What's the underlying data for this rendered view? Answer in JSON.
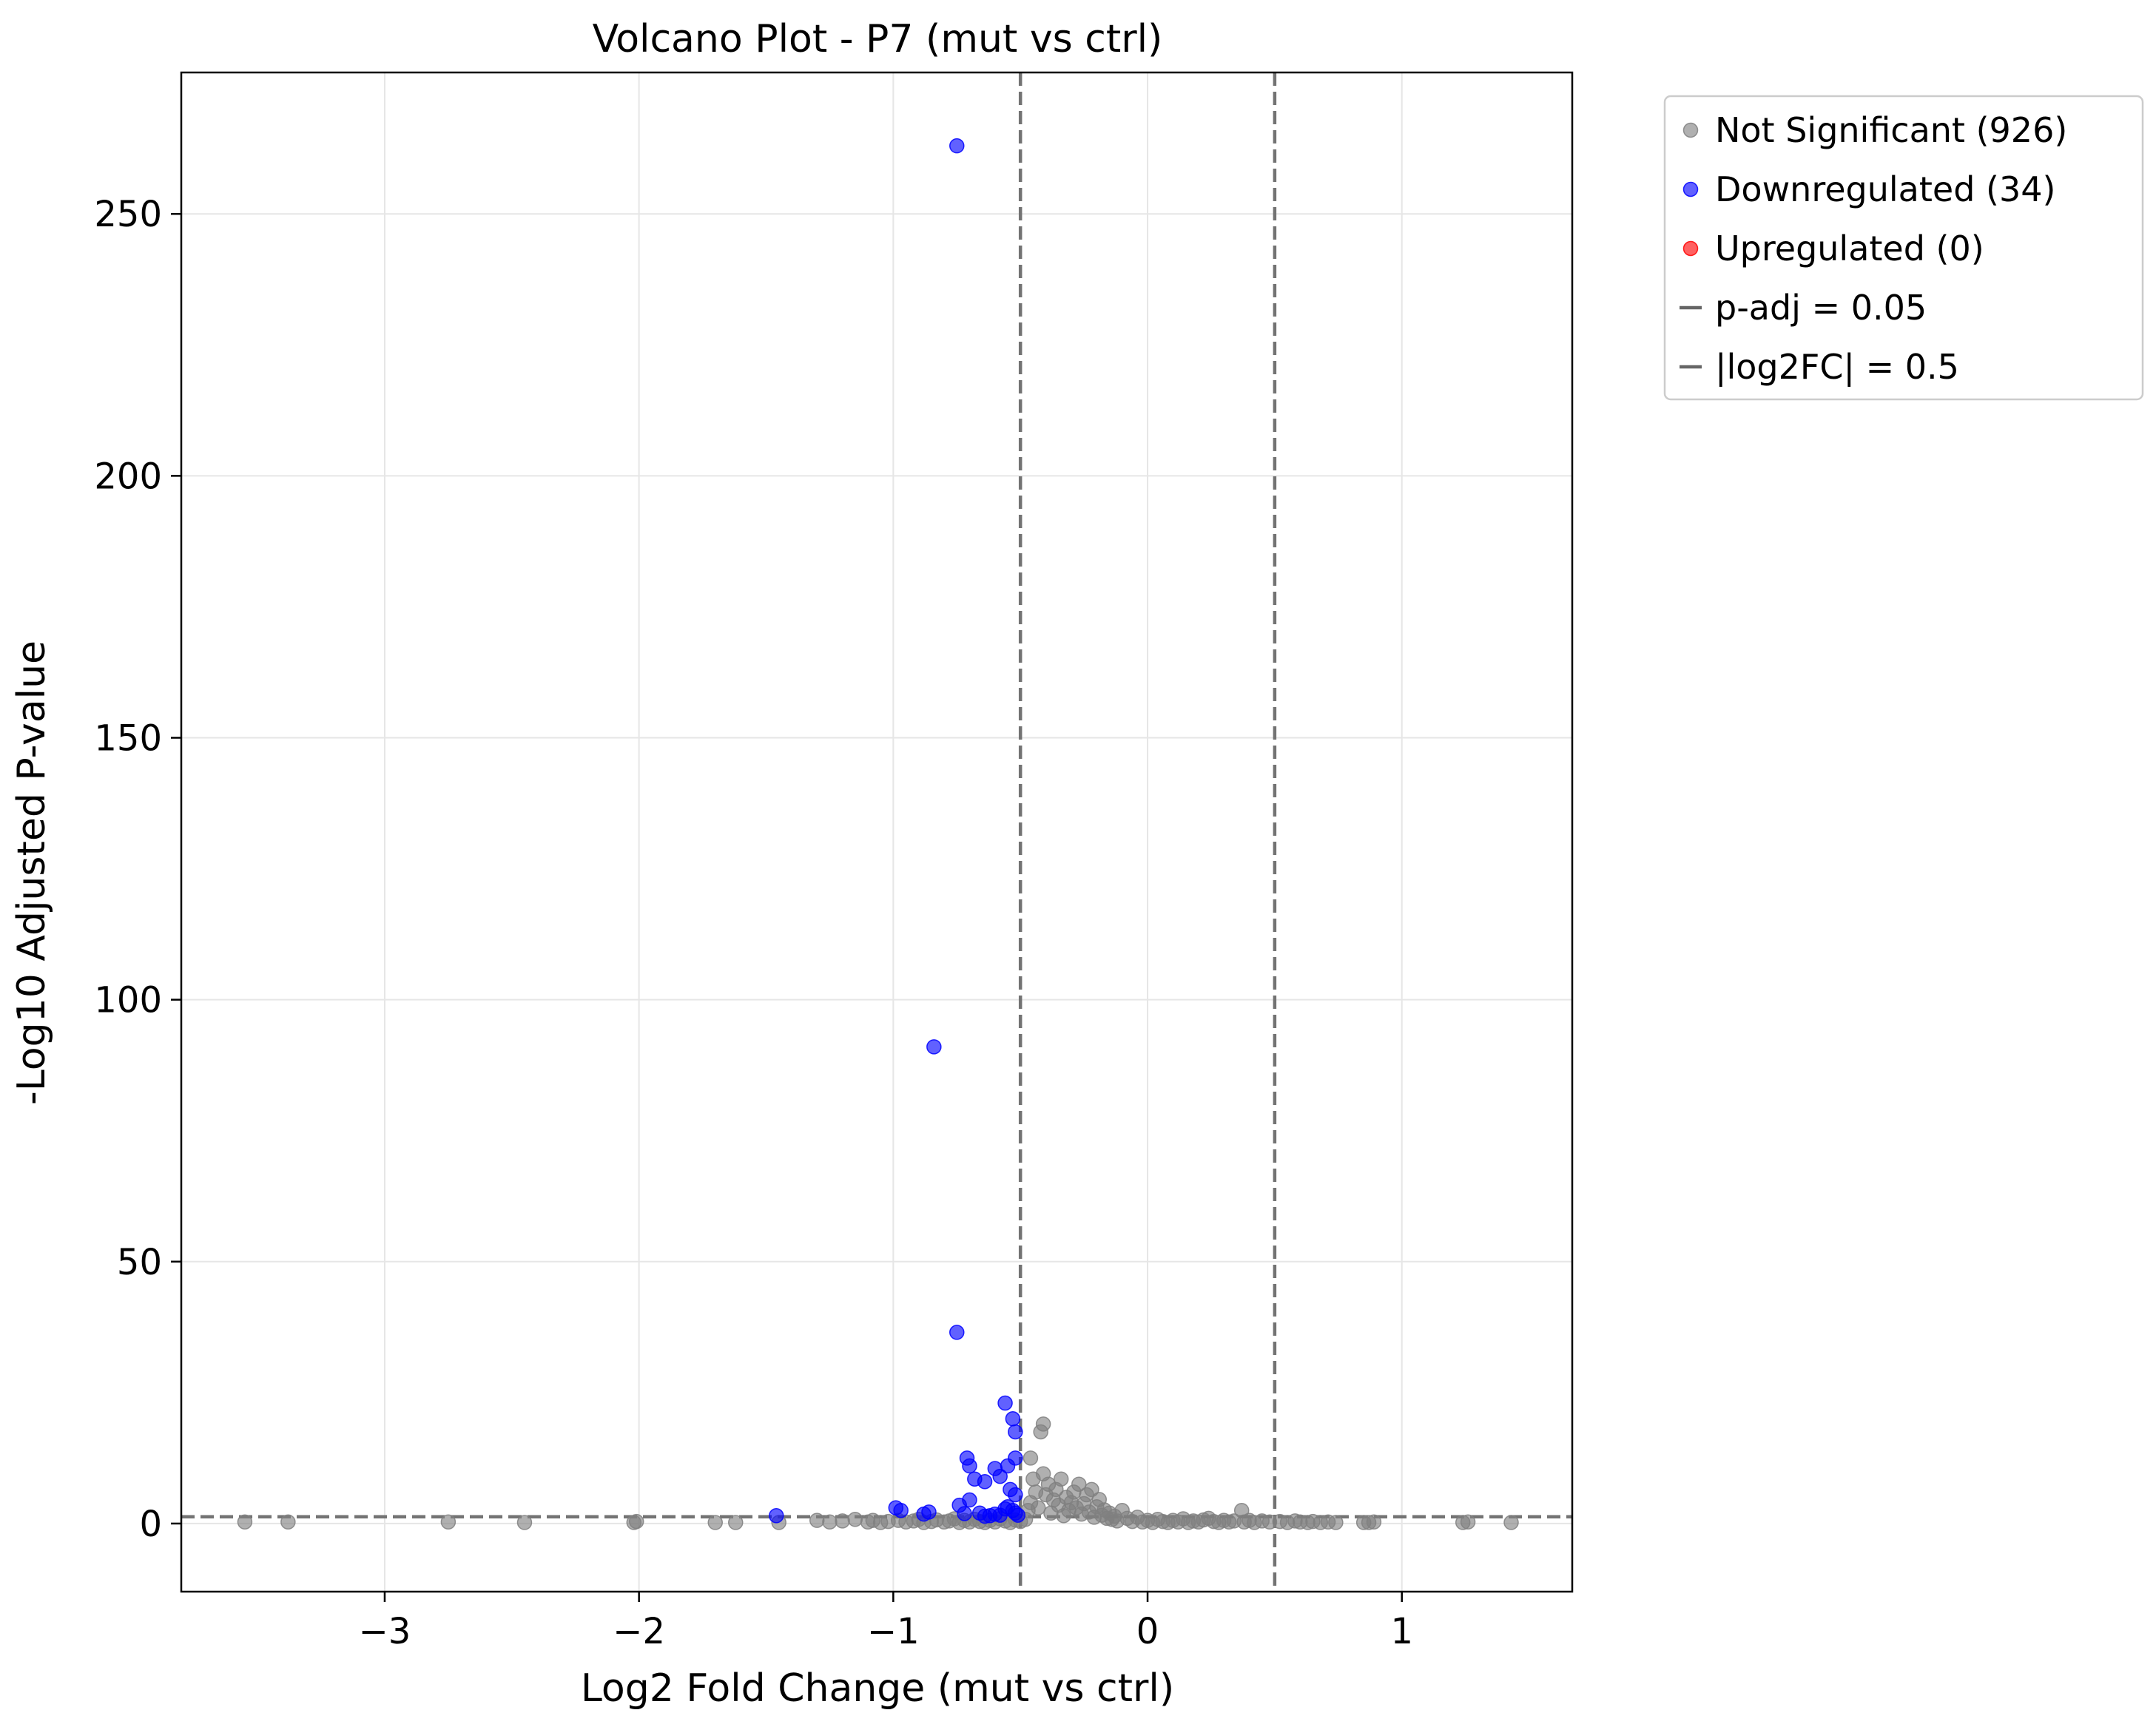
{
  "chart_data": {
    "type": "scatter",
    "title": "Volcano Plot - P7 (mut vs ctrl)",
    "xlabel": "Log2 Fold Change (mut vs ctrl)",
    "ylabel": "-Log10 Adjusted P-value",
    "xlim": [
      -3.8,
      1.67
    ],
    "ylim": [
      -13,
      277
    ],
    "x_ticks": [
      -3,
      -2,
      -1,
      0,
      1
    ],
    "x_tick_labels": [
      "−3",
      "−2",
      "−1",
      "0",
      "1"
    ],
    "y_ticks": [
      0,
      50,
      100,
      150,
      200,
      250
    ],
    "y_tick_labels": [
      "0",
      "50",
      "100",
      "150",
      "200",
      "250"
    ],
    "grid": true,
    "legend_position": "outside-top-right",
    "thresholds": {
      "padj_line_y": 1.3,
      "fc_lines_x": [
        -0.5,
        0.5
      ]
    },
    "legend": [
      {
        "label": "Not Significant (926)",
        "kind": "marker",
        "color": "#808080"
      },
      {
        "label": "Downregulated (34)",
        "kind": "marker",
        "color": "#0000ff"
      },
      {
        "label": "Upregulated (0)",
        "kind": "marker",
        "color": "#ff0000"
      },
      {
        "label": "p-adj = 0.05",
        "kind": "line",
        "color": "#666666"
      },
      {
        "label": "|log2FC| = 0.5",
        "kind": "line",
        "color": "#666666"
      }
    ],
    "series": [
      {
        "name": "Not Significant (926)",
        "color": "#808080",
        "points": [
          [
            -3.55,
            0.3
          ],
          [
            -3.38,
            0.3
          ],
          [
            -2.75,
            0.3
          ],
          [
            -2.45,
            0.2
          ],
          [
            -2.02,
            0.2
          ],
          [
            -2.01,
            0.4
          ],
          [
            -1.7,
            0.2
          ],
          [
            -1.62,
            0.2
          ],
          [
            -1.45,
            0.2
          ],
          [
            -1.3,
            0.6
          ],
          [
            -1.25,
            0.3
          ],
          [
            -1.2,
            0.5
          ],
          [
            -1.15,
            0.8
          ],
          [
            -1.1,
            0.3
          ],
          [
            -1.08,
            0.6
          ],
          [
            -1.05,
            0.2
          ],
          [
            -1.02,
            0.4
          ],
          [
            -0.98,
            0.6
          ],
          [
            -0.95,
            0.3
          ],
          [
            -0.92,
            0.5
          ],
          [
            -0.9,
            0.8
          ],
          [
            -0.88,
            0.2
          ],
          [
            -0.85,
            0.4
          ],
          [
            -0.83,
            0.7
          ],
          [
            -0.8,
            0.3
          ],
          [
            -0.78,
            0.5
          ],
          [
            -0.76,
            0.9
          ],
          [
            -0.74,
            0.2
          ],
          [
            -0.72,
            0.6
          ],
          [
            -0.7,
            0.3
          ],
          [
            -0.68,
            0.8
          ],
          [
            -0.66,
            0.4
          ],
          [
            -0.64,
            0.2
          ],
          [
            -0.62,
            0.6
          ],
          [
            -0.6,
            0.3
          ],
          [
            -0.58,
            0.9
          ],
          [
            -0.56,
            0.5
          ],
          [
            -0.54,
            0.2
          ],
          [
            -0.52,
            0.7
          ],
          [
            -0.5,
            0.4
          ],
          [
            -0.48,
            0.8
          ],
          [
            -0.47,
            2.5
          ],
          [
            -0.46,
            4.0
          ],
          [
            -0.46,
            12.5
          ],
          [
            -0.45,
            8.5
          ],
          [
            -0.44,
            6.0
          ],
          [
            -0.43,
            3.0
          ],
          [
            -0.42,
            17.5
          ],
          [
            -0.41,
            19.0
          ],
          [
            -0.41,
            9.5
          ],
          [
            -0.4,
            5.5
          ],
          [
            -0.39,
            7.5
          ],
          [
            -0.38,
            2.0
          ],
          [
            -0.37,
            4.5
          ],
          [
            -0.36,
            6.5
          ],
          [
            -0.35,
            3.5
          ],
          [
            -0.34,
            8.5
          ],
          [
            -0.33,
            1.5
          ],
          [
            -0.32,
            5.0
          ],
          [
            -0.31,
            2.5
          ],
          [
            -0.3,
            4.0
          ],
          [
            -0.29,
            6.0
          ],
          [
            -0.28,
            3.0
          ],
          [
            -0.27,
            7.5
          ],
          [
            -0.26,
            1.8
          ],
          [
            -0.25,
            3.8
          ],
          [
            -0.24,
            5.5
          ],
          [
            -0.23,
            2.2
          ],
          [
            -0.22,
            6.5
          ],
          [
            -0.21,
            1.2
          ],
          [
            -0.2,
            3.2
          ],
          [
            -0.19,
            4.6
          ],
          [
            -0.18,
            1.6
          ],
          [
            -0.17,
            2.6
          ],
          [
            -0.16,
            1.0
          ],
          [
            -0.15,
            2.0
          ],
          [
            -0.14,
            0.8
          ],
          [
            -0.13,
            1.4
          ],
          [
            -0.12,
            0.5
          ],
          [
            -0.1,
            2.5
          ],
          [
            -0.08,
            1.0
          ],
          [
            -0.06,
            0.4
          ],
          [
            -0.04,
            1.2
          ],
          [
            -0.02,
            0.3
          ],
          [
            0.0,
            0.6
          ],
          [
            0.02,
            0.2
          ],
          [
            0.04,
            0.8
          ],
          [
            0.06,
            0.4
          ],
          [
            0.08,
            0.2
          ],
          [
            0.1,
            0.6
          ],
          [
            0.12,
            0.3
          ],
          [
            0.14,
            0.9
          ],
          [
            0.16,
            0.2
          ],
          [
            0.18,
            0.5
          ],
          [
            0.2,
            0.3
          ],
          [
            0.22,
            0.7
          ],
          [
            0.24,
            1.0
          ],
          [
            0.26,
            0.4
          ],
          [
            0.28,
            0.2
          ],
          [
            0.3,
            0.6
          ],
          [
            0.32,
            0.3
          ],
          [
            0.34,
            0.5
          ],
          [
            0.37,
            2.5
          ],
          [
            0.38,
            0.3
          ],
          [
            0.4,
            0.6
          ],
          [
            0.42,
            0.2
          ],
          [
            0.45,
            0.5
          ],
          [
            0.48,
            0.3
          ],
          [
            0.52,
            0.4
          ],
          [
            0.55,
            0.2
          ],
          [
            0.58,
            0.5
          ],
          [
            0.6,
            0.3
          ],
          [
            0.63,
            0.2
          ],
          [
            0.65,
            0.4
          ],
          [
            0.68,
            0.2
          ],
          [
            0.71,
            0.3
          ],
          [
            0.74,
            0.2
          ],
          [
            0.85,
            0.2
          ],
          [
            0.87,
            0.2
          ],
          [
            0.89,
            0.3
          ],
          [
            1.24,
            0.2
          ],
          [
            1.26,
            0.3
          ],
          [
            1.43,
            0.2
          ]
        ]
      },
      {
        "name": "Downregulated (34)",
        "color": "#0000ff",
        "points": [
          [
            -0.75,
            263.0
          ],
          [
            -0.84,
            91.0
          ],
          [
            -0.75,
            36.5
          ],
          [
            -0.56,
            23.0
          ],
          [
            -0.53,
            20.0
          ],
          [
            -0.52,
            17.5
          ],
          [
            -0.71,
            12.5
          ],
          [
            -0.52,
            12.5
          ],
          [
            -0.7,
            11.0
          ],
          [
            -0.55,
            11.0
          ],
          [
            -0.6,
            10.5
          ],
          [
            -0.58,
            9.0
          ],
          [
            -0.68,
            8.5
          ],
          [
            -0.64,
            8.0
          ],
          [
            -0.54,
            6.5
          ],
          [
            -0.52,
            5.5
          ],
          [
            -0.7,
            4.5
          ],
          [
            -0.74,
            3.5
          ],
          [
            -0.99,
            3.0
          ],
          [
            -0.97,
            2.5
          ],
          [
            -0.86,
            2.2
          ],
          [
            -0.88,
            1.8
          ],
          [
            -0.66,
            2.0
          ],
          [
            -0.56,
            2.8
          ],
          [
            -0.55,
            3.2
          ],
          [
            -0.53,
            2.5
          ],
          [
            -1.46,
            1.5
          ],
          [
            -0.62,
            1.5
          ],
          [
            -0.6,
            1.8
          ],
          [
            -0.58,
            1.6
          ],
          [
            -0.52,
            2.0
          ],
          [
            -0.51,
            1.6
          ],
          [
            -0.72,
            1.9
          ],
          [
            -0.64,
            1.4
          ]
        ]
      },
      {
        "name": "Upregulated (0)",
        "color": "#ff0000",
        "points": []
      }
    ]
  }
}
